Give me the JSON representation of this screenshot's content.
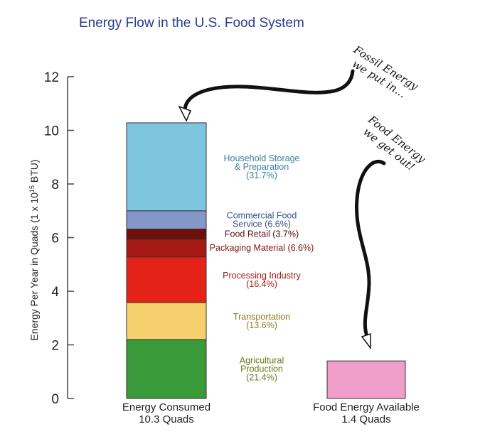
{
  "chart_data": {
    "type": "bar",
    "title": "Energy Flow in the U.S. Food System",
    "ylabel": "Energy Per Year in Quads (1 x 10",
    "ylabel_exponent": "15",
    "ylabel_suffix": " BTU)",
    "ylim": [
      0,
      12
    ],
    "yticks": [
      0,
      2,
      4,
      6,
      8,
      10,
      12
    ],
    "categories": [
      {
        "name": "Energy Consumed",
        "sublabel": "10.3 Quads"
      },
      {
        "name": "Food Energy Available",
        "sublabel": "1.4 Quads"
      }
    ],
    "series": [
      {
        "name": "Agricultural Production",
        "label_lines": [
          "Agricultural",
          "Production",
          "(21.4%)"
        ],
        "percent": 21.4,
        "category": "Energy Consumed",
        "base": 0.0,
        "value": 2.2,
        "color": "#3a9a3a",
        "label_color": "#6a7a1a"
      },
      {
        "name": "Transportation",
        "label_lines": [
          "Transportation",
          "(13.6%)"
        ],
        "percent": 13.6,
        "category": "Energy Consumed",
        "base": 2.2,
        "value": 1.38,
        "color": "#f7d06e",
        "label_color": "#8f7a22"
      },
      {
        "name": "Processing Industry",
        "label_lines": [
          "Processing Industry",
          "(16.4%)"
        ],
        "percent": 16.4,
        "category": "Energy Consumed",
        "base": 3.58,
        "value": 1.7,
        "color": "#e52218",
        "label_color": "#a41a14"
      },
      {
        "name": "Packaging Material",
        "label_lines": [
          "Packaging Material (6.6%)"
        ],
        "percent": 6.6,
        "category": "Energy Consumed",
        "base": 5.28,
        "value": 0.66,
        "color": "#a51a14",
        "label_color": "#7a1410"
      },
      {
        "name": "Food Retail",
        "label_lines": [
          "Food Retail (3.7%)"
        ],
        "percent": 3.7,
        "category": "Energy Consumed",
        "base": 5.94,
        "value": 0.38,
        "color": "#6e0f0c",
        "label_color": "#5a0d0a"
      },
      {
        "name": "Commercial Food Service",
        "label_lines": [
          "Commercial Food",
          "Service (6.6%)"
        ],
        "percent": 6.6,
        "category": "Energy Consumed",
        "base": 6.32,
        "value": 0.68,
        "color": "#8497c9",
        "label_color": "#3b4f8a"
      },
      {
        "name": "Household Storage & Preparation",
        "label_lines": [
          "Household Storage",
          "& Preparation",
          "(31.7%)"
        ],
        "percent": 31.7,
        "category": "Energy Consumed",
        "base": 7.0,
        "value": 3.28,
        "color": "#7ec6df",
        "label_color": "#3b7fa0"
      },
      {
        "name": "Food Energy",
        "label_lines": [],
        "category": "Food Energy Available",
        "base": 0.0,
        "value": 1.4,
        "color": "#ef9fc9",
        "label_color": "#000000"
      }
    ],
    "annotations": [
      {
        "name": "fossil-energy-note",
        "lines": [
          "Fossil Energy",
          "we put in..."
        ]
      },
      {
        "name": "food-energy-note",
        "lines": [
          "Food Energy",
          "we get out!"
        ]
      }
    ]
  }
}
